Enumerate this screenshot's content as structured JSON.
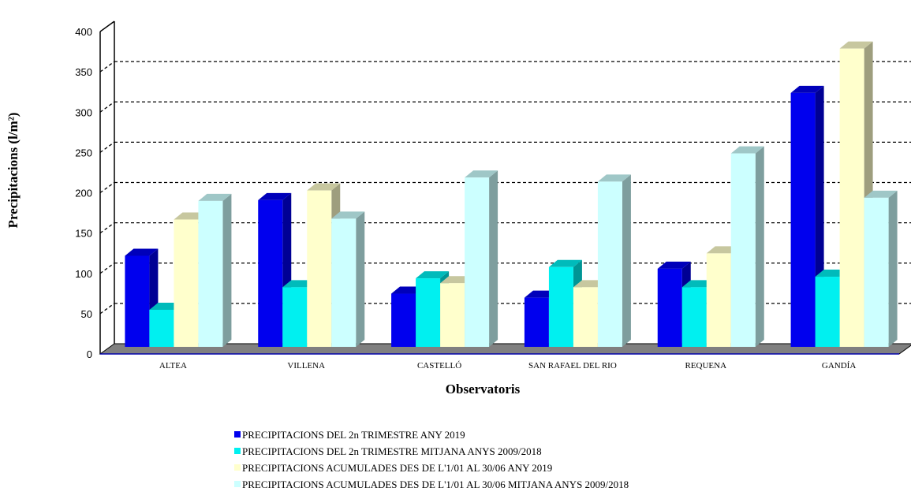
{
  "chart_data": {
    "type": "bar",
    "xlabel": "Observatoris",
    "ylabel": "Precipitacions (l/m²)",
    "ylim": [
      0,
      400
    ],
    "yticks": [
      0,
      50,
      100,
      150,
      200,
      250,
      300,
      350,
      400
    ],
    "grid": true,
    "legend_position": "bottom",
    "categories": [
      "ALTEA",
      "VILLENA",
      "CASTELLÓ",
      "SAN RAFAEL DEL RIO",
      "REQUENA",
      "GANDÍA"
    ],
    "series": [
      {
        "name": "PRECIPITACIONS DEL 2n TRIMESTRE ANY 2019",
        "color": "#0000ee",
        "values": [
          113,
          182,
          66,
          61,
          97,
          315
        ]
      },
      {
        "name": "PRECIPITACIONS DEL 2n TRIMESTRE MITJANA ANYS 2009/2018",
        "color": "#00f0f0",
        "values": [
          46,
          74,
          85,
          99,
          74,
          87
        ]
      },
      {
        "name": "PRECIPITACIONS ACUMULADES DES DE L'1/01 AL 30/06 ANY 2019",
        "color": "#ffffcc",
        "values": [
          158,
          194,
          79,
          74,
          116,
          370
        ]
      },
      {
        "name": "PRECIPITACIONS ACUMULADES DES DE L'1/01 AL 30/06 MITJANA ANYS 2009/2018",
        "color": "#ccffff",
        "values": [
          181,
          159,
          210,
          205,
          240,
          185
        ]
      }
    ]
  }
}
